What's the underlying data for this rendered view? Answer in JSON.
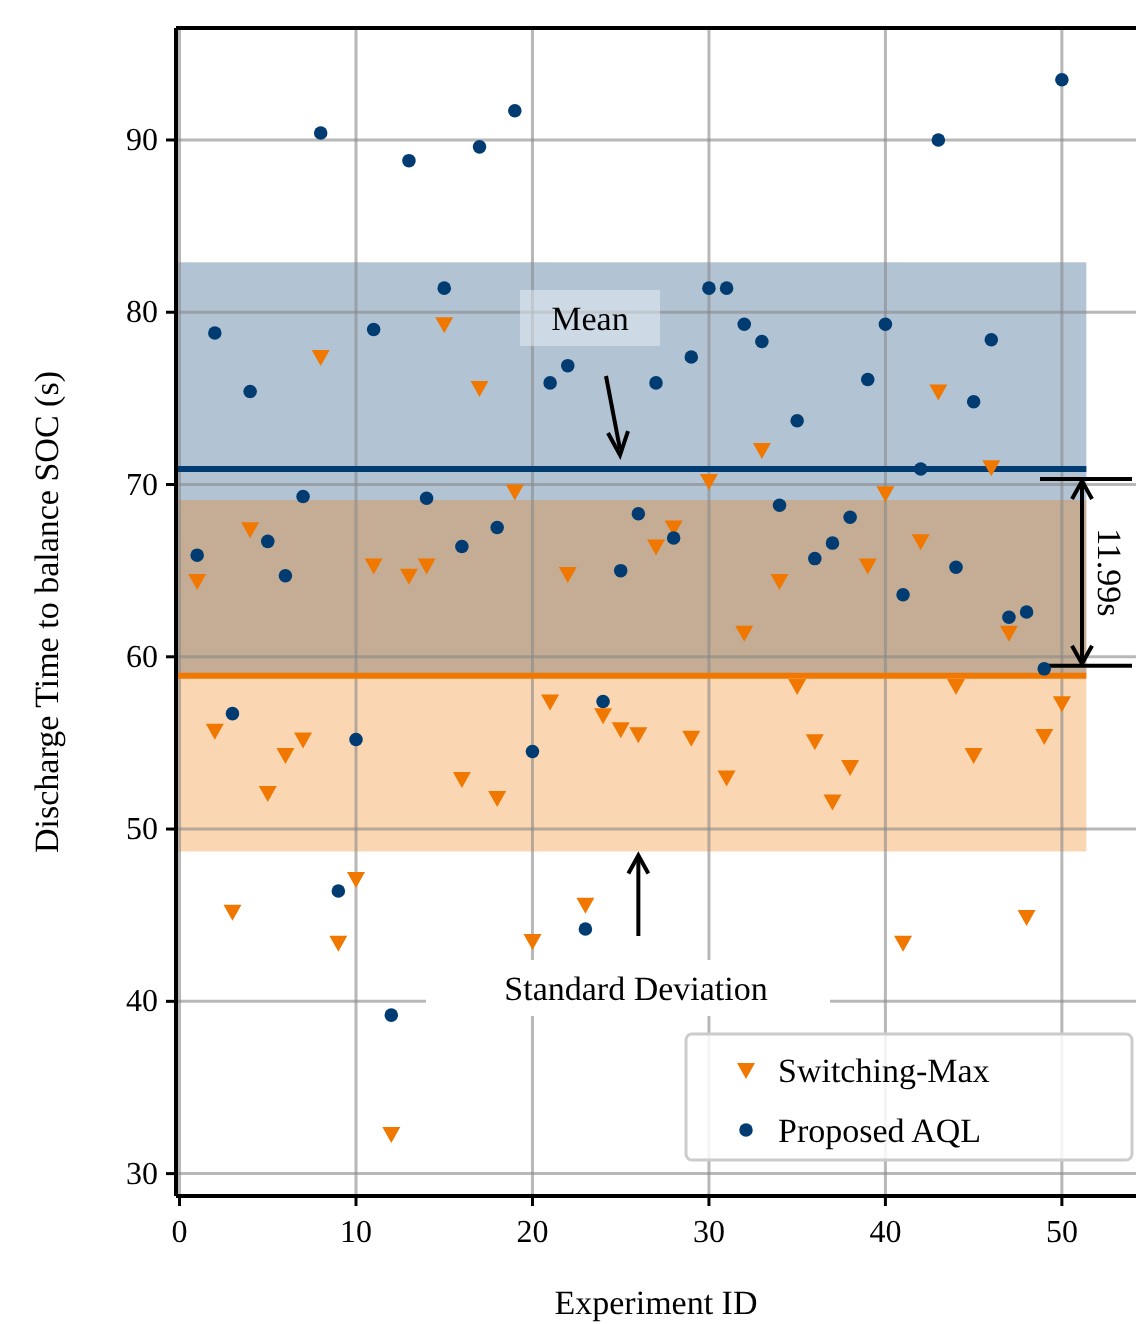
{
  "chart_data": {
    "type": "scatter",
    "xlabel": "Experiment ID",
    "ylabel": "Discharge Time to balance SOC (s)",
    "x": [
      1,
      2,
      3,
      4,
      5,
      6,
      7,
      8,
      9,
      10,
      11,
      12,
      13,
      14,
      15,
      16,
      17,
      18,
      19,
      20,
      21,
      22,
      23,
      24,
      25,
      26,
      27,
      28,
      29,
      30,
      31,
      32,
      33,
      34,
      35,
      36,
      37,
      38,
      39,
      40,
      41,
      42,
      43,
      44,
      45,
      46,
      47,
      48,
      49,
      50
    ],
    "series": [
      {
        "name": "Switching-Max",
        "color": "#f07800",
        "marker": "triangle",
        "values": [
          64.4,
          55.7,
          45.2,
          67.4,
          52.1,
          54.3,
          55.2,
          77.4,
          43.4,
          47.1,
          65.3,
          32.3,
          64.7,
          65.3,
          79.3,
          52.9,
          75.6,
          51.8,
          69.6,
          43.5,
          57.4,
          64.8,
          45.6,
          56.6,
          55.8,
          55.5,
          66.4,
          67.5,
          55.3,
          70.2,
          53.0,
          61.4,
          72.0,
          64.4,
          58.3,
          55.1,
          51.6,
          53.6,
          65.3,
          69.5,
          43.4,
          66.7,
          75.4,
          58.3,
          54.3,
          71.0,
          61.4,
          44.9,
          55.4,
          57.3
        ]
      },
      {
        "name": "Proposed AQL",
        "color": "#003c71",
        "marker": "circle",
        "values": [
          65.9,
          78.8,
          56.7,
          75.4,
          66.7,
          64.7,
          69.3,
          90.4,
          46.4,
          55.2,
          79.0,
          39.2,
          88.8,
          69.2,
          81.4,
          66.4,
          89.6,
          67.5,
          91.7,
          54.5,
          75.9,
          76.9,
          44.2,
          57.4,
          65.0,
          68.3,
          75.9,
          66.9,
          77.4,
          81.4,
          81.4,
          79.3,
          78.3,
          68.8,
          73.7,
          65.7,
          66.6,
          68.1,
          76.1,
          79.3,
          63.6,
          70.9,
          90.0,
          65.2,
          74.8,
          78.4,
          62.3,
          62.6,
          59.3,
          93.5
        ]
      }
    ],
    "xlim": [
      -0.2,
      54.2
    ],
    "ylim": [
      28.7,
      96.5
    ],
    "xticks": [
      0,
      10,
      20,
      30,
      40,
      50
    ],
    "yticks": [
      30,
      40,
      50,
      60,
      70,
      80,
      90
    ],
    "grid": true,
    "legend": "bottom right",
    "ref_lines": [
      {
        "axis": "y",
        "value": 70.9,
        "color": "#003c71"
      },
      {
        "axis": "y",
        "value": 58.9,
        "color": "#f07800"
      }
    ],
    "bands": [
      {
        "axis": "y",
        "from": 59.0,
        "to": 82.9,
        "color": "#003c71"
      },
      {
        "axis": "y",
        "from": 48.7,
        "to": 69.1,
        "color": "#f07800"
      }
    ],
    "annotations": [
      "Mean",
      {
        "text": "Standard Deviation",
        "x": 26,
        "y": 48.7
      },
      "11.99s"
    ]
  }
}
